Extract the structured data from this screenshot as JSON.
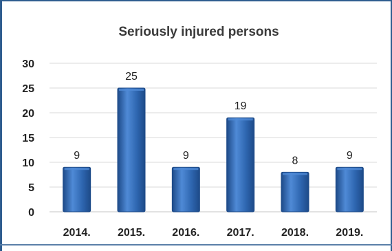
{
  "chart_data": {
    "type": "bar",
    "title": "Seriously injured persons",
    "categories": [
      "2014.",
      "2015.",
      "2016.",
      "2017.",
      "2018.",
      "2019."
    ],
    "values": [
      9,
      25,
      9,
      19,
      8,
      9
    ],
    "data_labels": [
      "9",
      "25",
      "9",
      "19",
      "8",
      "9"
    ],
    "xlabel": "",
    "ylabel": "",
    "ylim": [
      0,
      30
    ],
    "yticks": [
      0,
      5,
      10,
      15,
      20,
      25,
      30
    ],
    "ytick_labels": [
      "0",
      "5",
      "10",
      "15",
      "20",
      "25",
      "30"
    ],
    "grid": true,
    "legend": "none",
    "colors": {
      "bar": "#2e66b0",
      "bar_highlight": "#4f8ad6",
      "bar_dark": "#1d4a88",
      "grid": "#d9d9d9",
      "frame": "#2f5d8f"
    }
  }
}
